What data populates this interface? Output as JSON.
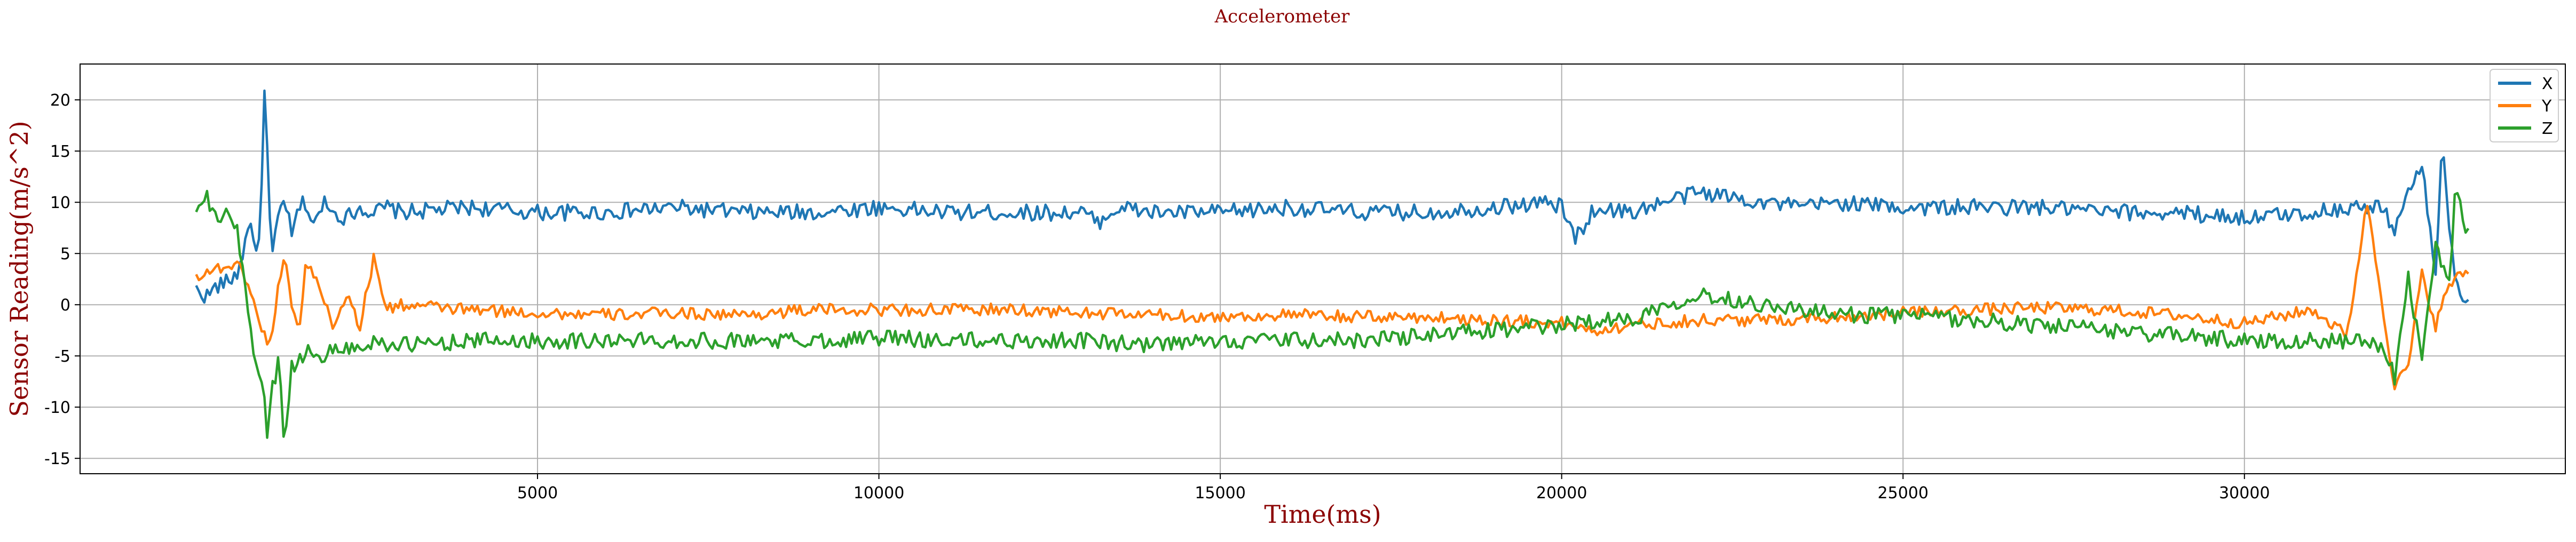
{
  "chart_data": {
    "type": "line",
    "title": "Accelerometer",
    "xlabel": "Time(ms)",
    "ylabel": "Sensor Reading(m/s^2)",
    "xlim": [
      -1700,
      34700
    ],
    "ylim": [
      -16.5,
      23.5
    ],
    "xticks": [
      5000,
      10000,
      15000,
      20000,
      25000,
      30000
    ],
    "yticks": [
      -15,
      -10,
      -5,
      0,
      5,
      10,
      15,
      20
    ],
    "grid": true,
    "legend_position": "top-right",
    "series": [
      {
        "name": "X",
        "color": "#1f77b4",
        "x": [
          0,
          150,
          300,
          450,
          600,
          700,
          800,
          900,
          950,
          1000,
          1050,
          1100,
          1150,
          1200,
          1300,
          1400,
          1500,
          1600,
          1700,
          1800,
          1900,
          2000,
          2200,
          2400,
          2600,
          2800,
          3000,
          4000,
          5000,
          6000,
          7000,
          8000,
          9000,
          10000,
          11000,
          12000,
          13000,
          13200,
          13500,
          14000,
          15000,
          16000,
          17000,
          18000,
          19000,
          19800,
          20000,
          20200,
          20500,
          21000,
          21500,
          22000,
          22500,
          23000,
          23500,
          24000,
          25000,
          26000,
          27000,
          28000,
          29000,
          30000,
          31000,
          31500,
          32000,
          32200,
          32400,
          32600,
          32800,
          32900,
          33000,
          33100,
          33300
        ],
        "y": [
          1.5,
          0.8,
          1.8,
          2.2,
          3.0,
          5.5,
          8.5,
          3.5,
          10.5,
          20.5,
          14.0,
          4.0,
          6.0,
          8.5,
          10.5,
          6.5,
          9.5,
          10.0,
          8.0,
          8.5,
          10.5,
          9.0,
          8.5,
          9.5,
          9.0,
          9.5,
          9.0,
          9.5,
          9.0,
          9.0,
          9.5,
          9.0,
          9.0,
          9.5,
          9.0,
          9.0,
          9.0,
          8.0,
          9.5,
          9.0,
          9.0,
          9.5,
          9.0,
          9.0,
          9.5,
          10.0,
          9.5,
          6.5,
          9.5,
          9.0,
          10.0,
          11.0,
          10.5,
          10.0,
          9.5,
          10.0,
          9.5,
          9.5,
          9.5,
          9.0,
          9.0,
          8.5,
          9.0,
          9.5,
          9.5,
          7.5,
          11.0,
          13.5,
          3.0,
          16.5,
          8.0,
          1.5,
          0.5
        ],
        "noise": 0.8
      },
      {
        "name": "Y",
        "color": "#ff7f0e",
        "x": [
          0,
          150,
          300,
          450,
          600,
          700,
          800,
          900,
          1000,
          1100,
          1200,
          1300,
          1400,
          1500,
          1600,
          1800,
          2000,
          2200,
          2400,
          2600,
          2800,
          3000,
          4000,
          5000,
          6000,
          7000,
          8000,
          9000,
          10000,
          11000,
          12000,
          13000,
          14000,
          15000,
          16000,
          17000,
          18000,
          19000,
          20000,
          20500,
          21000,
          22000,
          23000,
          24000,
          25000,
          26000,
          27000,
          28000,
          29000,
          30000,
          31000,
          31500,
          31800,
          32000,
          32200,
          32400,
          32600,
          32800,
          33000,
          33300
        ],
        "y": [
          2.8,
          3.2,
          3.5,
          3.8,
          3.8,
          3.2,
          1.0,
          -1.0,
          -3.0,
          -4.0,
          2.0,
          5.0,
          0.0,
          -3.0,
          4.0,
          2.0,
          -2.0,
          1.0,
          -2.0,
          4.5,
          -0.5,
          0.0,
          -0.5,
          -0.8,
          -1.0,
          -0.8,
          -1.0,
          -0.5,
          -0.5,
          -0.5,
          -0.5,
          -0.8,
          -1.0,
          -1.2,
          -1.0,
          -1.2,
          -1.2,
          -1.5,
          -1.8,
          -2.5,
          -2.0,
          -1.5,
          -1.5,
          -1.2,
          -0.8,
          -0.5,
          -0.3,
          -0.5,
          -1.0,
          -1.8,
          -0.5,
          -3.0,
          10.0,
          1.0,
          -8.0,
          -6.0,
          3.0,
          -2.0,
          2.0,
          3.5
        ],
        "noise": 0.6
      },
      {
        "name": "Z",
        "color": "#2ca02c",
        "x": [
          0,
          150,
          300,
          450,
          600,
          700,
          800,
          900,
          1000,
          1050,
          1100,
          1150,
          1200,
          1300,
          1400,
          1500,
          1600,
          1800,
          2000,
          2200,
          2400,
          2600,
          3000,
          4000,
          5000,
          6000,
          7000,
          8000,
          9000,
          10000,
          11000,
          12000,
          13000,
          14000,
          15000,
          16000,
          17000,
          18000,
          19000,
          20000,
          20500,
          21000,
          21500,
          22000,
          22500,
          23000,
          23500,
          24000,
          25000,
          26000,
          27000,
          28000,
          29000,
          30000,
          31000,
          31500,
          32000,
          32200,
          32400,
          32600,
          32800,
          33000,
          33100,
          33200,
          33300
        ],
        "y": [
          9.0,
          10.5,
          8.0,
          9.5,
          7.0,
          3.0,
          -3.0,
          -6.0,
          -9.0,
          -14.5,
          -7.0,
          -8.0,
          -5.0,
          -14.0,
          -6.0,
          -5.5,
          -4.5,
          -5.0,
          -4.5,
          -4.0,
          -4.5,
          -3.5,
          -4.0,
          -3.5,
          -3.5,
          -3.5,
          -3.5,
          -3.5,
          -3.5,
          -3.2,
          -3.5,
          -3.5,
          -3.5,
          -4.0,
          -3.5,
          -3.5,
          -3.5,
          -3.0,
          -2.5,
          -2.0,
          -1.5,
          -1.5,
          0.0,
          1.0,
          0.5,
          0.0,
          -0.5,
          -1.0,
          -1.0,
          -1.5,
          -2.0,
          -2.5,
          -3.0,
          -3.5,
          -3.5,
          -3.5,
          -4.0,
          -7.0,
          2.5,
          -5.0,
          6.0,
          2.0,
          12.0,
          8.0,
          7.5
        ],
        "noise": 0.8
      }
    ]
  }
}
